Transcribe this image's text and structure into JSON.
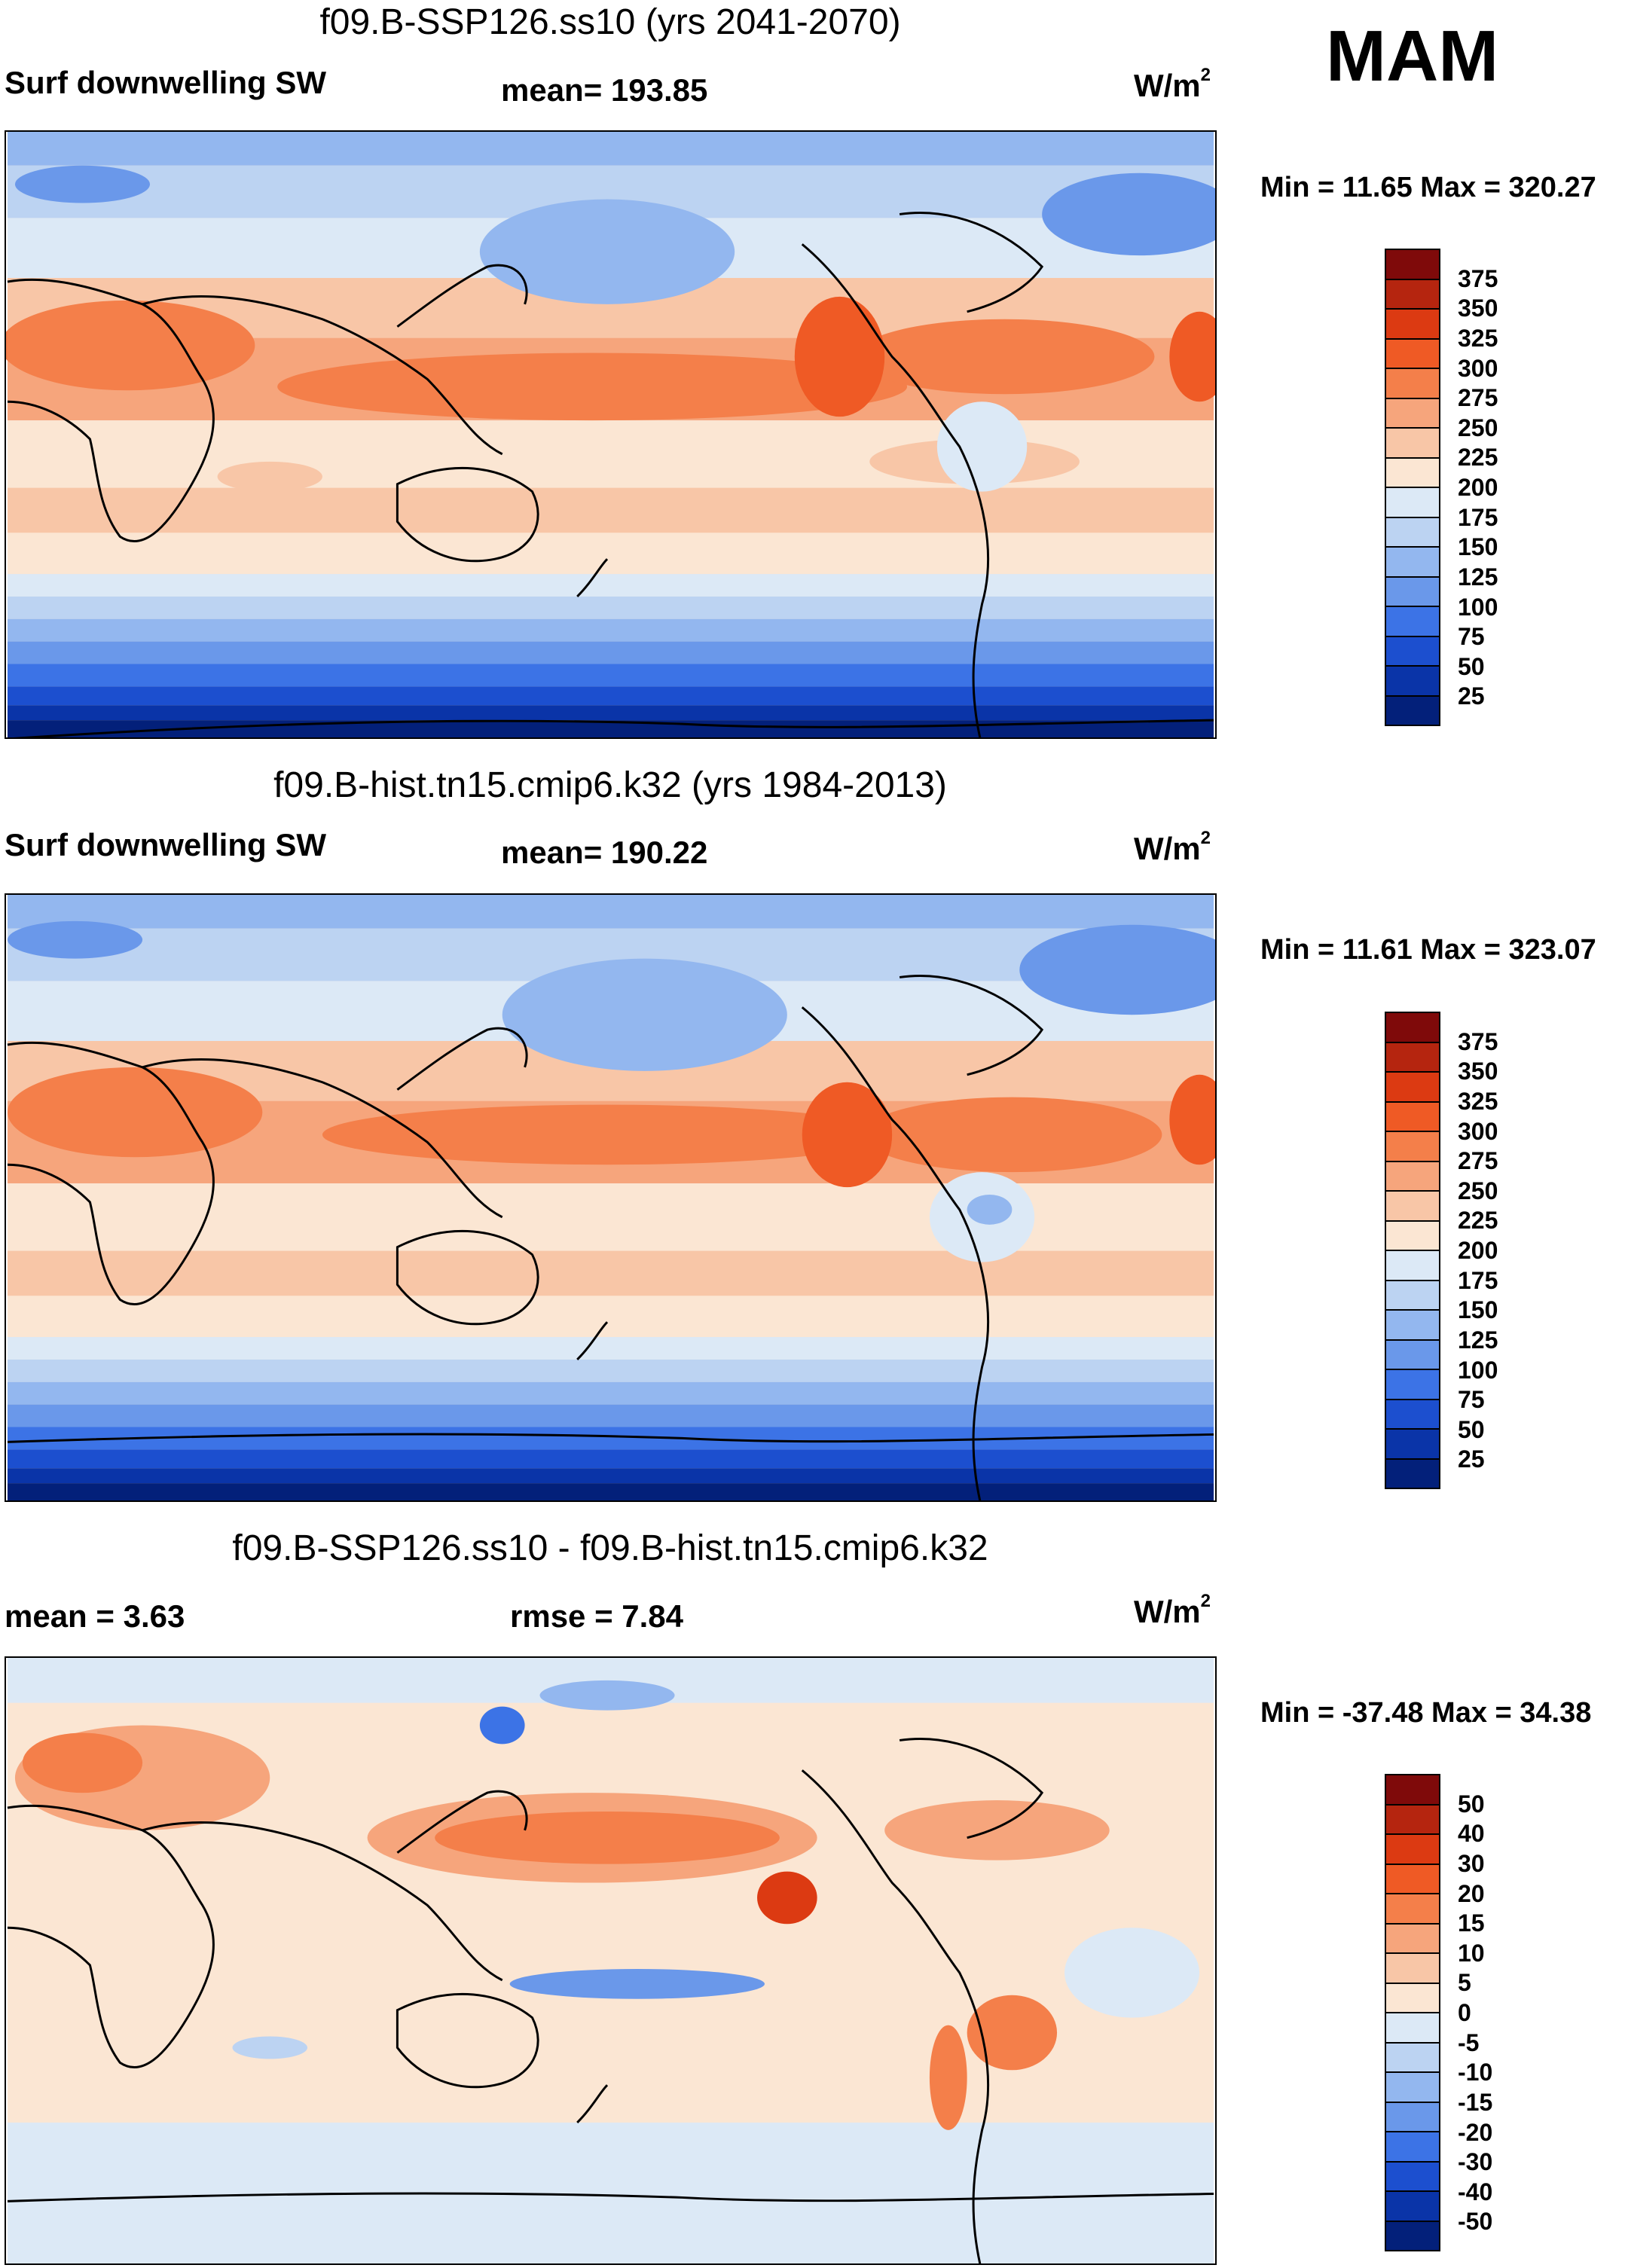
{
  "season": "MAM",
  "panels": [
    {
      "title": "f09.B-SSP126.ss10 (yrs 2041-2070)",
      "left_label": "Surf downwelling SW",
      "center_label": "mean= 193.85",
      "units": "W/m",
      "units_sup": "2",
      "minmax": "Min =  11.65 Max = 320.27",
      "colorbar_labels": [
        "375",
        "350",
        "325",
        "300",
        "275",
        "250",
        "225",
        "200",
        "175",
        "150",
        "125",
        "100",
        "75",
        "50",
        "25"
      ],
      "colorbar_colors": [
        "#7f0a0a",
        "#b5250f",
        "#dc3a12",
        "#ef5a25",
        "#f47f4a",
        "#f6a57c",
        "#f8c6a7",
        "#fbe6d3",
        "#dce9f6",
        "#bcd3f2",
        "#93b7ef",
        "#6a98ea",
        "#3c73e6",
        "#1c4fcf",
        "#0a34a8",
        "#03207a"
      ]
    },
    {
      "title": "f09.B-hist.tn15.cmip6.k32 (yrs 1984-2013)",
      "left_label": "Surf downwelling SW",
      "center_label": "mean= 190.22",
      "units": "W/m",
      "units_sup": "2",
      "minmax": "Min =  11.61 Max = 323.07",
      "colorbar_labels": [
        "375",
        "350",
        "325",
        "300",
        "275",
        "250",
        "225",
        "200",
        "175",
        "150",
        "125",
        "100",
        "75",
        "50",
        "25"
      ],
      "colorbar_colors": [
        "#7f0a0a",
        "#b5250f",
        "#dc3a12",
        "#ef5a25",
        "#f47f4a",
        "#f6a57c",
        "#f8c6a7",
        "#fbe6d3",
        "#dce9f6",
        "#bcd3f2",
        "#93b7ef",
        "#6a98ea",
        "#3c73e6",
        "#1c4fcf",
        "#0a34a8",
        "#03207a"
      ]
    },
    {
      "title": "f09.B-SSP126.ss10 - f09.B-hist.tn15.cmip6.k32",
      "left_label": "mean =   3.63",
      "center_label": "rmse =    7.84",
      "units": "W/m",
      "units_sup": "2",
      "minmax": "Min = -37.48 Max =  34.38",
      "colorbar_labels": [
        "50",
        "40",
        "30",
        "20",
        "15",
        "10",
        "5",
        "0",
        "-5",
        "-10",
        "-15",
        "-20",
        "-30",
        "-40",
        "-50"
      ],
      "colorbar_colors": [
        "#7f0a0a",
        "#b5250f",
        "#dc3a12",
        "#ef5a25",
        "#f47f4a",
        "#f6a57c",
        "#f8c6a7",
        "#fbe6d3",
        "#dce9f6",
        "#bcd3f2",
        "#93b7ef",
        "#6a98ea",
        "#3c73e6",
        "#1c4fcf",
        "#0a34a8",
        "#03207a"
      ]
    }
  ]
}
